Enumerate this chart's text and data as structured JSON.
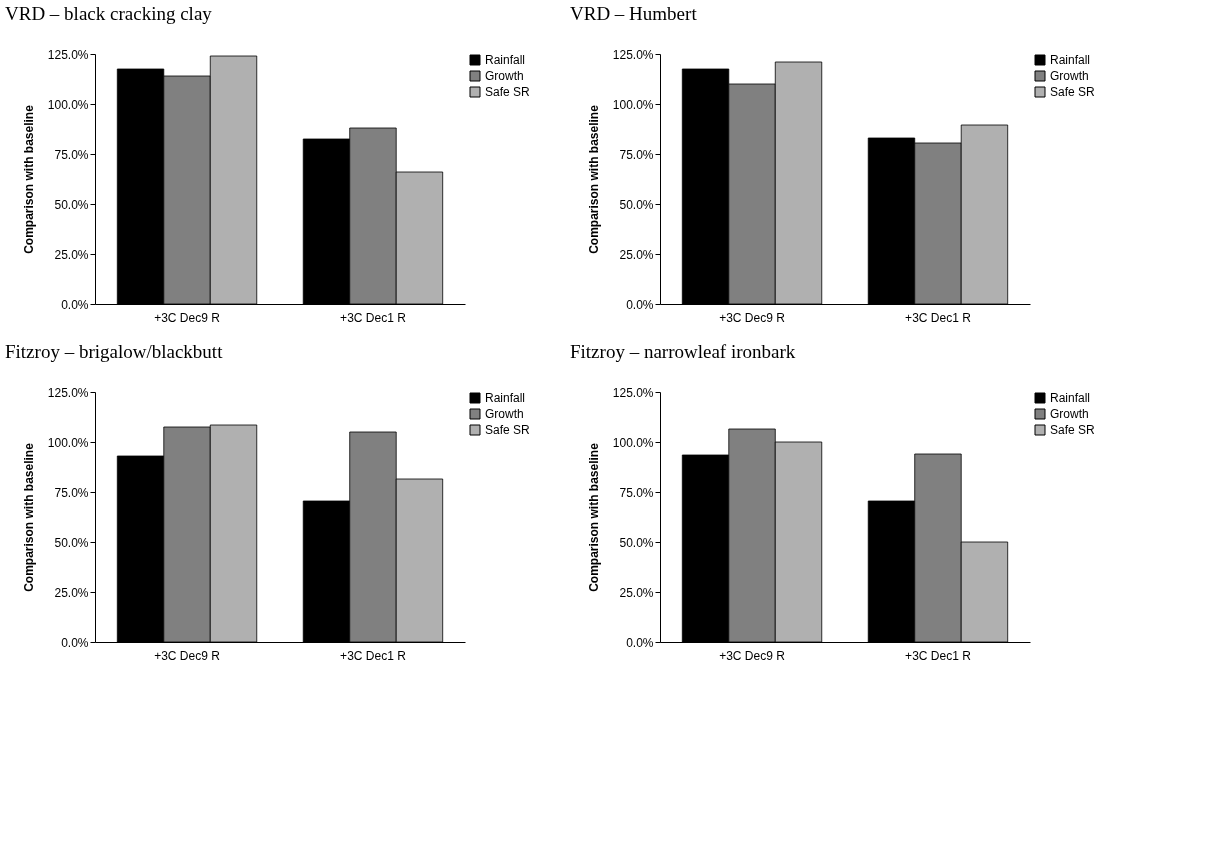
{
  "chart_data": [
    {
      "type": "bar",
      "title": "VRD – black cracking clay",
      "ylabel": "Comparison with baseline",
      "categories": [
        "+3C Dec9 R",
        "+3C Dec1 R"
      ],
      "series": [
        {
          "name": "Rainfall",
          "color": "#000000",
          "values": [
            117.5,
            82.5
          ]
        },
        {
          "name": "Growth",
          "color": "#808080",
          "values": [
            114,
            88
          ]
        },
        {
          "name": "Safe SR",
          "color": "#b0b0b0",
          "values": [
            124,
            66
          ]
        }
      ],
      "ylim": [
        0,
        125
      ],
      "yticks": [
        {
          "value": 0,
          "label": "0.0%"
        },
        {
          "value": 25,
          "label": "25.0%"
        },
        {
          "value": 50,
          "label": "50.0%"
        },
        {
          "value": 75,
          "label": "75.0%"
        },
        {
          "value": 100,
          "label": "100.0%"
        },
        {
          "value": 125,
          "label": "125.0%"
        }
      ],
      "legend": "top right",
      "grid": false
    },
    {
      "type": "bar",
      "title": "VRD – Humbert",
      "ylabel": "Comparison with baseline",
      "categories": [
        "+3C Dec9 R",
        "+3C Dec1 R"
      ],
      "series": [
        {
          "name": "Rainfall",
          "color": "#000000",
          "values": [
            117.5,
            83
          ]
        },
        {
          "name": "Growth",
          "color": "#808080",
          "values": [
            110,
            80.5
          ]
        },
        {
          "name": "Safe SR",
          "color": "#b0b0b0",
          "values": [
            121,
            89.5
          ]
        }
      ],
      "ylim": [
        0,
        125
      ],
      "yticks": [
        {
          "value": 0,
          "label": "0.0%"
        },
        {
          "value": 25,
          "label": "25.0%"
        },
        {
          "value": 50,
          "label": "50.0%"
        },
        {
          "value": 75,
          "label": "75.0%"
        },
        {
          "value": 100,
          "label": "100.0%"
        },
        {
          "value": 125,
          "label": "125.0%"
        }
      ],
      "legend": "top right",
      "grid": false
    },
    {
      "type": "bar",
      "title": "Fitzroy – brigalow/blackbutt",
      "ylabel": "Comparison with baseline",
      "categories": [
        "+3C Dec9 R",
        "+3C Dec1 R"
      ],
      "series": [
        {
          "name": "Rainfall",
          "color": "#000000",
          "values": [
            93,
            70.5
          ]
        },
        {
          "name": "Growth",
          "color": "#808080",
          "values": [
            107.5,
            105
          ]
        },
        {
          "name": "Safe SR",
          "color": "#b0b0b0",
          "values": [
            108.5,
            81.5
          ]
        }
      ],
      "ylim": [
        0,
        125
      ],
      "yticks": [
        {
          "value": 0,
          "label": "0.0%"
        },
        {
          "value": 25,
          "label": "25.0%"
        },
        {
          "value": 50,
          "label": "50.0%"
        },
        {
          "value": 75,
          "label": "75.0%"
        },
        {
          "value": 100,
          "label": "100.0%"
        },
        {
          "value": 125,
          "label": "125.0%"
        }
      ],
      "legend": "top right",
      "grid": false
    },
    {
      "type": "bar",
      "title": "Fitzroy – narrowleaf ironbark",
      "ylabel": "Comparison with baseline",
      "categories": [
        "+3C Dec9 R",
        "+3C Dec1 R"
      ],
      "series": [
        {
          "name": "Rainfall",
          "color": "#000000",
          "values": [
            93.5,
            70.5
          ]
        },
        {
          "name": "Growth",
          "color": "#808080",
          "values": [
            106.5,
            94
          ]
        },
        {
          "name": "Safe SR",
          "color": "#b0b0b0",
          "values": [
            100,
            50
          ]
        }
      ],
      "ylim": [
        0,
        125
      ],
      "yticks": [
        {
          "value": 0,
          "label": "0.0%"
        },
        {
          "value": 25,
          "label": "25.0%"
        },
        {
          "value": 50,
          "label": "50.0%"
        },
        {
          "value": 75,
          "label": "75.0%"
        },
        {
          "value": 100,
          "label": "100.0%"
        },
        {
          "value": 125,
          "label": "125.0%"
        }
      ],
      "legend": "top right",
      "grid": false
    }
  ]
}
